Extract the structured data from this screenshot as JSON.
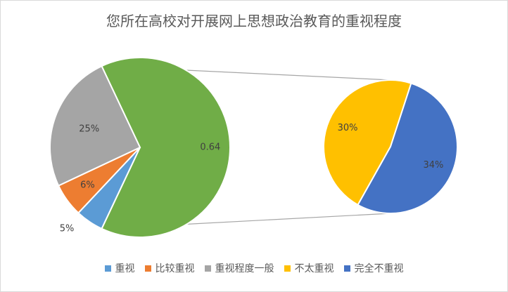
{
  "chart_data": {
    "type": "pie",
    "title": "您所在高校对开展网上思想政治教育的重视程度",
    "main_pie": {
      "slices": [
        {
          "name": "重视",
          "value": 0.05,
          "label": "5%",
          "color": "#5b9bd5"
        },
        {
          "name": "比较重视",
          "value": 0.06,
          "label": "6%",
          "color": "#ed7d31"
        },
        {
          "name": "重视程度一般",
          "value": 0.25,
          "label": "25%",
          "color": "#a5a5a5"
        },
        {
          "name": "不太重视 + 完全不重视",
          "value": 0.64,
          "label": "0.64",
          "color": "#70ad47"
        }
      ]
    },
    "secondary_pie": {
      "slices": [
        {
          "name": "不太重视",
          "value": 0.3,
          "label": "30%",
          "color": "#ffc000"
        },
        {
          "name": "完全不重视",
          "value": 0.34,
          "label": "34%",
          "color": "#4472c4"
        }
      ]
    },
    "legend": [
      {
        "name": "重视",
        "color": "#5b9bd5"
      },
      {
        "name": "比较重视",
        "color": "#ed7d31"
      },
      {
        "name": "重视程度一般",
        "color": "#a5a5a5"
      },
      {
        "name": "不太重视",
        "color": "#ffc000"
      },
      {
        "name": "完全不重视",
        "color": "#4472c4"
      }
    ],
    "legend_position": "bottom"
  }
}
